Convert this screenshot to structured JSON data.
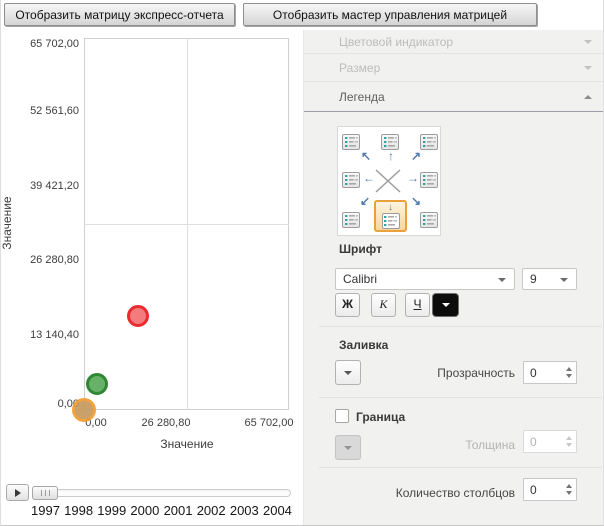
{
  "toolbar": {
    "express_report_button": "Отобразить матрицу экспресс-отчета",
    "matrix_wizard_button": "Отобразить мастер управления матрицей"
  },
  "chart_data": {
    "type": "scatter",
    "subtype": "bubble",
    "title": "",
    "xlabel": "Значение",
    "ylabel": "Значение",
    "x_axis": {
      "label": "Значение",
      "range": [
        0,
        65702
      ],
      "ticks": [
        {
          "label": "0,00",
          "value": 0
        },
        {
          "label": "26 280,80",
          "value": 26280.8
        },
        {
          "label": "65 702,00",
          "value": 65702
        }
      ]
    },
    "y_axis": {
      "label": "Значение",
      "range": [
        0,
        65702
      ],
      "ticks": [
        {
          "label": "0,00",
          "value": 0
        },
        {
          "label": "13 140,40",
          "value": 13140.4
        },
        {
          "label": "26 280,80",
          "value": 26280.8
        },
        {
          "label": "39 421,20",
          "value": 39421.2
        },
        {
          "label": "52 561,60",
          "value": 52561.6
        },
        {
          "label": "65 702,00",
          "value": 65702
        }
      ]
    },
    "gridlines": {
      "x_values": [
        32851
      ],
      "y_values": [
        32851
      ]
    },
    "series": [
      {
        "name": "red",
        "x": 17300,
        "y": 16600,
        "radius_px": 11,
        "fill": "#f47070",
        "stroke": "#e81a1f"
      },
      {
        "name": "green",
        "x": 4200,
        "y": 4600,
        "radius_px": 11,
        "fill": "#5cab5c",
        "stroke": "#1f7e24"
      },
      {
        "name": "orange",
        "x": 0,
        "y": 0,
        "radius_px": 12,
        "fill": "#c6995f",
        "stroke": "#ef9c2e"
      }
    ],
    "legend_position": "none",
    "timeline_years": [
      "1997",
      "1998",
      "1999",
      "2000",
      "2001",
      "2002",
      "2003",
      "2004"
    ]
  },
  "panel": {
    "sections": [
      {
        "label": "Цветовой индикатор",
        "expanded": false,
        "enabled": false
      },
      {
        "label": "Размер",
        "expanded": false,
        "enabled": false
      },
      {
        "label": "Легенда",
        "expanded": true,
        "enabled": true
      }
    ],
    "legend_settings": {
      "positions": [
        "top-left",
        "top-center",
        "top-right",
        "middle-left",
        "none",
        "middle-right",
        "bottom-left",
        "bottom-center",
        "bottom-right"
      ],
      "selected_position": "bottom-center",
      "font_label": "Шрифт",
      "font_family": "Calibri",
      "font_size": "9",
      "bold_label": "Ж",
      "italic_label": "К",
      "underline_label": "Ч",
      "fill_label": "Заливка",
      "transparency_label": "Прозрачность",
      "transparency_value": "0",
      "border_label": "Граница",
      "border_checked": false,
      "thickness_label": "Толщина",
      "thickness_value": "0",
      "columns_label": "Количество столбцов",
      "columns_value": "0"
    },
    "colors": {
      "selection_orange": "#e9a23b",
      "arrow_blue": "#4f7cac",
      "font_color_swatch": "#000000"
    }
  }
}
